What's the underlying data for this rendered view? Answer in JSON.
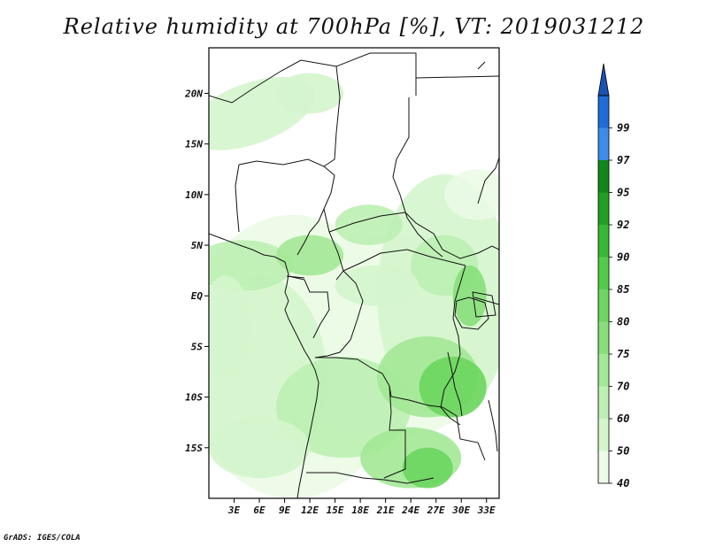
{
  "title": "Relative humidity at 700hPa [%], VT: 2019031212",
  "credit": "GrADS: IGES/COLA",
  "map": {
    "lon_range": [
      0,
      34.5
    ],
    "lat_range": [
      -20,
      24.5
    ],
    "lat_ticks": [
      {
        "value": 20,
        "label": "20N"
      },
      {
        "value": 15,
        "label": "15N"
      },
      {
        "value": 10,
        "label": "10N"
      },
      {
        "value": 5,
        "label": "5N"
      },
      {
        "value": 0,
        "label": "EQ"
      },
      {
        "value": -5,
        "label": "5S"
      },
      {
        "value": -10,
        "label": "10S"
      },
      {
        "value": -15,
        "label": "15S"
      }
    ],
    "lon_ticks": [
      {
        "value": 3,
        "label": "3E"
      },
      {
        "value": 6,
        "label": "6E"
      },
      {
        "value": 9,
        "label": "9E"
      },
      {
        "value": 12,
        "label": "12E"
      },
      {
        "value": 15,
        "label": "15E"
      },
      {
        "value": 18,
        "label": "18E"
      },
      {
        "value": 21,
        "label": "21E"
      },
      {
        "value": 24,
        "label": "24E"
      },
      {
        "value": 27,
        "label": "27E"
      },
      {
        "value": 30,
        "label": "30E"
      },
      {
        "value": 33,
        "label": "33E"
      }
    ]
  },
  "colorbar": {
    "levels": [
      "40",
      "50",
      "60",
      "70",
      "75",
      "80",
      "85",
      "90",
      "92",
      "95",
      "97",
      "99"
    ],
    "colors": [
      "#ebfbe6",
      "#d4f5cc",
      "#bdefb3",
      "#a3e896",
      "#88df7a",
      "#6cd65e",
      "#52cc48",
      "#37b834",
      "#22a021",
      "#12861a",
      "#3c8cea",
      "#1f6cd8",
      "#1a52b4"
    ]
  },
  "colors": {
    "border": "#111111",
    "frame": "#000000"
  }
}
